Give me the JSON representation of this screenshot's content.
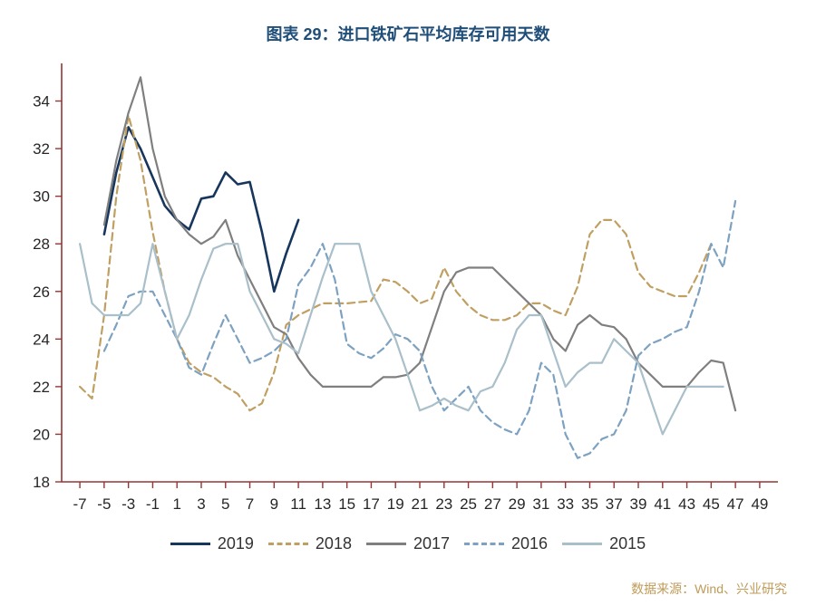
{
  "title": "图表 29：进口铁矿石平均库存可用天数",
  "source": "数据来源：Wind、兴业研究",
  "colors": {
    "title_text": "#1f4e79",
    "axis": "#943634",
    "tick_label": "#262626",
    "source_text": "#bf9b58"
  },
  "legend": [
    {
      "label": "2019",
      "color": "#17365d",
      "dash": "solid"
    },
    {
      "label": "2018",
      "color": "#c0a062",
      "dash": "dashed"
    },
    {
      "label": "2017",
      "color": "#7f7f7f",
      "dash": "solid"
    },
    {
      "label": "2016",
      "color": "#7da2c1",
      "dash": "dashed"
    },
    {
      "label": "2015",
      "color": "#a9bfca",
      "dash": "solid"
    }
  ],
  "chart_data": {
    "type": "line",
    "title": "图表 29：进口铁矿石平均库存可用天数",
    "xlabel": "",
    "ylabel": "",
    "xlim": [
      -8.5,
      50.5
    ],
    "ylim": [
      18,
      35.2
    ],
    "xticks": [
      -7,
      -5,
      -3,
      -1,
      1,
      3,
      5,
      7,
      9,
      11,
      13,
      15,
      17,
      19,
      21,
      23,
      25,
      27,
      29,
      31,
      33,
      35,
      37,
      39,
      41,
      43,
      45,
      47,
      49
    ],
    "yticks": [
      18,
      20,
      22,
      24,
      26,
      28,
      30,
      32,
      34
    ],
    "grid": false,
    "legend_position": "bottom",
    "series": [
      {
        "name": "2019",
        "color": "#17365d",
        "dash": "solid",
        "width": 2.6,
        "points": [
          [
            -5,
            28.4
          ],
          [
            -4,
            31
          ],
          [
            -3,
            32.9
          ],
          [
            -2,
            32
          ],
          [
            -1,
            30.8
          ],
          [
            0,
            29.6
          ],
          [
            1,
            29
          ],
          [
            2,
            28.6
          ],
          [
            3,
            29.9
          ],
          [
            4,
            30
          ],
          [
            5,
            31
          ],
          [
            6,
            30.5
          ],
          [
            7,
            30.6
          ],
          [
            8,
            28.5
          ],
          [
            9,
            26
          ],
          [
            10,
            27.6
          ],
          [
            11,
            29
          ]
        ]
      },
      {
        "name": "2018",
        "color": "#c0a062",
        "dash": "dashed",
        "width": 2.2,
        "points": [
          [
            -7,
            22
          ],
          [
            -6,
            21.5
          ],
          [
            -5,
            25
          ],
          [
            -4,
            30
          ],
          [
            -3,
            33.4
          ],
          [
            -2,
            31.5
          ],
          [
            -1,
            28.5
          ],
          [
            0,
            26
          ],
          [
            1,
            24
          ],
          [
            2,
            23
          ],
          [
            3,
            22.6
          ],
          [
            4,
            22.4
          ],
          [
            5,
            22
          ],
          [
            6,
            21.7
          ],
          [
            7,
            21
          ],
          [
            8,
            21.3
          ],
          [
            9,
            22.6
          ],
          [
            10,
            24.6
          ],
          [
            11,
            25
          ],
          [
            13,
            25.5
          ],
          [
            15,
            25.5
          ],
          [
            17,
            25.6
          ],
          [
            18,
            26.5
          ],
          [
            19,
            26.4
          ],
          [
            20,
            26
          ],
          [
            21,
            25.5
          ],
          [
            22,
            25.7
          ],
          [
            23,
            27
          ],
          [
            24,
            26
          ],
          [
            25,
            25.4
          ],
          [
            26,
            25
          ],
          [
            27,
            24.8
          ],
          [
            28,
            24.8
          ],
          [
            29,
            25
          ],
          [
            30,
            25.5
          ],
          [
            31,
            25.5
          ],
          [
            32,
            25.2
          ],
          [
            33,
            25
          ],
          [
            34,
            26.2
          ],
          [
            35,
            28.4
          ],
          [
            36,
            29
          ],
          [
            37,
            29
          ],
          [
            38,
            28.4
          ],
          [
            39,
            26.8
          ],
          [
            40,
            26.2
          ],
          [
            41,
            26
          ],
          [
            42,
            25.8
          ],
          [
            43,
            25.8
          ],
          [
            44,
            26.8
          ],
          [
            45,
            28
          ]
        ]
      },
      {
        "name": "2017",
        "color": "#7f7f7f",
        "dash": "solid",
        "width": 2.2,
        "points": [
          [
            -5,
            28.8
          ],
          [
            -4,
            31.5
          ],
          [
            -3,
            33.5
          ],
          [
            -2,
            35
          ],
          [
            -1,
            32
          ],
          [
            0,
            30
          ],
          [
            1,
            29
          ],
          [
            2,
            28.4
          ],
          [
            3,
            28
          ],
          [
            4,
            28.3
          ],
          [
            5,
            29
          ],
          [
            6,
            27.5
          ],
          [
            7,
            26.5
          ],
          [
            8,
            25.5
          ],
          [
            9,
            24.5
          ],
          [
            10,
            24.2
          ],
          [
            11,
            23.2
          ],
          [
            12,
            22.5
          ],
          [
            13,
            22
          ],
          [
            15,
            22
          ],
          [
            17,
            22
          ],
          [
            18,
            22.4
          ],
          [
            19,
            22.4
          ],
          [
            20,
            22.5
          ],
          [
            21,
            23
          ],
          [
            22,
            24.5
          ],
          [
            23,
            26
          ],
          [
            24,
            26.8
          ],
          [
            25,
            27
          ],
          [
            27,
            27
          ],
          [
            29,
            26
          ],
          [
            31,
            25
          ],
          [
            32,
            24
          ],
          [
            33,
            23.5
          ],
          [
            34,
            24.6
          ],
          [
            35,
            25
          ],
          [
            36,
            24.6
          ],
          [
            37,
            24.5
          ],
          [
            38,
            24
          ],
          [
            39,
            23
          ],
          [
            40,
            22.5
          ],
          [
            41,
            22
          ],
          [
            43,
            22
          ],
          [
            44,
            22.6
          ],
          [
            45,
            23.1
          ],
          [
            46,
            23
          ],
          [
            47,
            21
          ]
        ]
      },
      {
        "name": "2016",
        "color": "#7da2c1",
        "dash": "dashed",
        "width": 2.2,
        "points": [
          [
            -5,
            23.5
          ],
          [
            -4,
            24.6
          ],
          [
            -3,
            25.8
          ],
          [
            -2,
            26
          ],
          [
            -1,
            26
          ],
          [
            0,
            25
          ],
          [
            1,
            24
          ],
          [
            2,
            22.8
          ],
          [
            3,
            22.5
          ],
          [
            4,
            23.8
          ],
          [
            5,
            25
          ],
          [
            6,
            24
          ],
          [
            7,
            23
          ],
          [
            8,
            23.2
          ],
          [
            9,
            23.5
          ],
          [
            10,
            24
          ],
          [
            11,
            26.3
          ],
          [
            12,
            27
          ],
          [
            13,
            28
          ],
          [
            14,
            26.5
          ],
          [
            15,
            23.8
          ],
          [
            16,
            23.4
          ],
          [
            17,
            23.2
          ],
          [
            18,
            23.6
          ],
          [
            19,
            24.2
          ],
          [
            20,
            24
          ],
          [
            21,
            23.5
          ],
          [
            22,
            22
          ],
          [
            23,
            21
          ],
          [
            24,
            21.5
          ],
          [
            25,
            22
          ],
          [
            26,
            21
          ],
          [
            27,
            20.5
          ],
          [
            28,
            20.2
          ],
          [
            29,
            20
          ],
          [
            30,
            21
          ],
          [
            31,
            23
          ],
          [
            32,
            22.5
          ],
          [
            33,
            20
          ],
          [
            34,
            19
          ],
          [
            35,
            19.2
          ],
          [
            36,
            19.8
          ],
          [
            37,
            20
          ],
          [
            38,
            21
          ],
          [
            39,
            23.3
          ],
          [
            40,
            23.8
          ],
          [
            41,
            24
          ],
          [
            42,
            24.3
          ],
          [
            43,
            24.5
          ],
          [
            44,
            26
          ],
          [
            45,
            28
          ],
          [
            46,
            27
          ],
          [
            47,
            29.8
          ]
        ]
      },
      {
        "name": "2015",
        "color": "#a9bfca",
        "dash": "solid",
        "width": 2.2,
        "points": [
          [
            -7,
            28
          ],
          [
            -6,
            25.5
          ],
          [
            -5,
            25
          ],
          [
            -4,
            25
          ],
          [
            -3,
            25
          ],
          [
            -2,
            25.5
          ],
          [
            -1,
            28
          ],
          [
            0,
            26
          ],
          [
            1,
            24
          ],
          [
            2,
            25
          ],
          [
            3,
            26.5
          ],
          [
            4,
            27.8
          ],
          [
            5,
            28
          ],
          [
            6,
            28
          ],
          [
            7,
            26
          ],
          [
            8,
            25
          ],
          [
            9,
            24
          ],
          [
            10,
            23.8
          ],
          [
            11,
            23.4
          ],
          [
            12,
            25
          ],
          [
            13,
            26.6
          ],
          [
            14,
            28
          ],
          [
            15,
            28
          ],
          [
            16,
            28
          ],
          [
            17,
            26
          ],
          [
            18,
            25
          ],
          [
            19,
            24
          ],
          [
            20,
            22.5
          ],
          [
            21,
            21
          ],
          [
            22,
            21.2
          ],
          [
            23,
            21.5
          ],
          [
            24,
            21.2
          ],
          [
            25,
            21
          ],
          [
            26,
            21.8
          ],
          [
            27,
            22
          ],
          [
            28,
            23
          ],
          [
            29,
            24.4
          ],
          [
            30,
            25
          ],
          [
            31,
            25
          ],
          [
            32,
            23.5
          ],
          [
            33,
            22
          ],
          [
            34,
            22.6
          ],
          [
            35,
            23
          ],
          [
            36,
            23
          ],
          [
            37,
            24
          ],
          [
            38,
            23.5
          ],
          [
            39,
            23
          ],
          [
            40,
            21.5
          ],
          [
            41,
            20
          ],
          [
            42,
            21
          ],
          [
            43,
            22
          ],
          [
            44,
            22
          ],
          [
            45,
            22
          ],
          [
            46,
            22
          ]
        ]
      }
    ]
  }
}
